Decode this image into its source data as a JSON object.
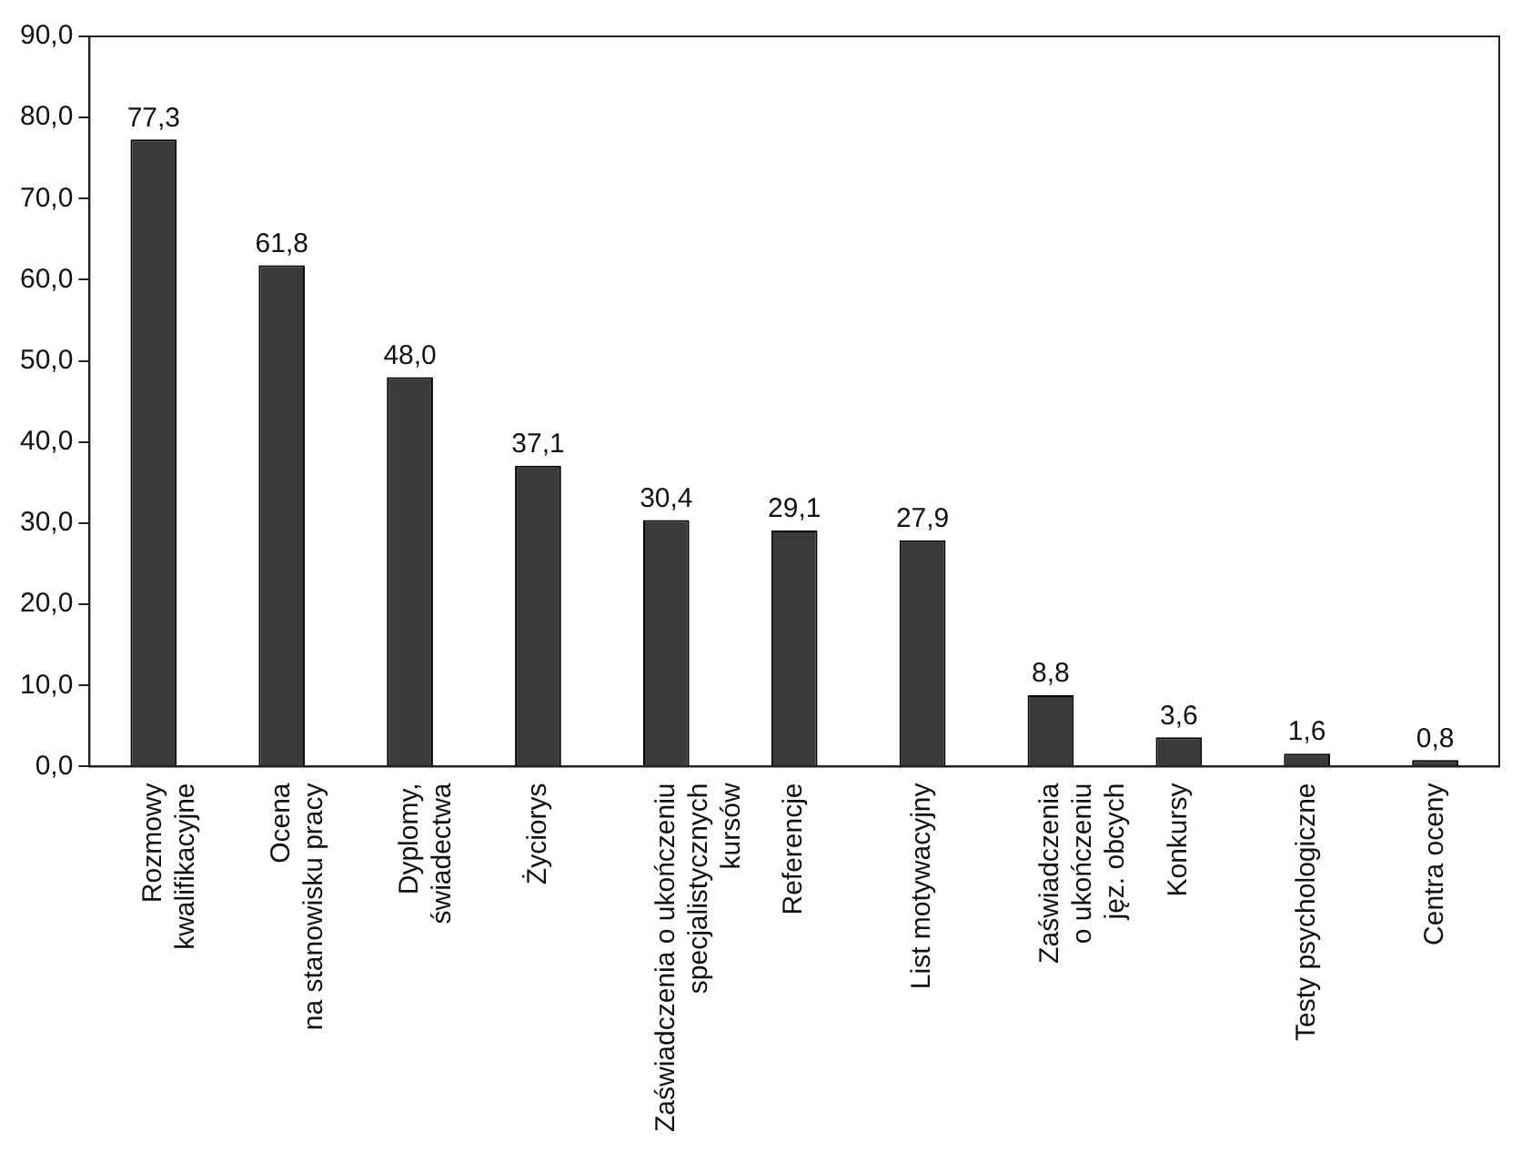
{
  "chart_data": {
    "type": "bar",
    "categories": [
      "Rozmowy\nkwalifikacyjne",
      "Ocena\nna stanowisku pracy",
      "Dyplomy,\nświadectwa",
      "Życiorys",
      "Zaświadczenia o ukończeniu\nspecjalistycznych\nkursów",
      "Referencje",
      "List motywacyjny",
      "Zaświadczenia\no ukończeniu\njęz. obcych",
      "Konkursy",
      "Testy psychologiczne",
      "Centra oceny"
    ],
    "values": [
      77.3,
      61.8,
      48.0,
      37.1,
      30.4,
      29.1,
      27.9,
      8.8,
      3.6,
      1.6,
      0.8
    ],
    "value_labels": [
      "77,3",
      "61,8",
      "48,0",
      "37,1",
      "30,4",
      "29,1",
      "27,9",
      "8,8",
      "3,6",
      "1,6",
      "0,8"
    ],
    "color": "#3a3a3a",
    "ylim": [
      0,
      90
    ],
    "yticks": [
      {
        "value": 0,
        "label": "0,0"
      },
      {
        "value": 10,
        "label": "10,0"
      },
      {
        "value": 20,
        "label": "20,0"
      },
      {
        "value": 30,
        "label": "30,0"
      },
      {
        "value": 40,
        "label": "40,0"
      },
      {
        "value": 50,
        "label": "50,0"
      },
      {
        "value": 60,
        "label": "60,0"
      },
      {
        "value": 70,
        "label": "70,0"
      },
      {
        "value": 80,
        "label": "80,0"
      },
      {
        "value": 90,
        "label": "90,0"
      }
    ],
    "grid": false,
    "legend": false
  }
}
